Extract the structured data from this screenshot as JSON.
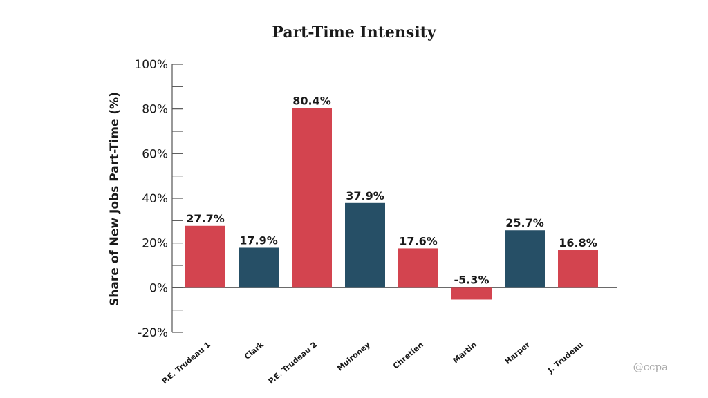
{
  "chart_data": {
    "type": "bar",
    "title": "Part-Time Intensity",
    "ylabel": "Share of New Jobs Part-Time (%)",
    "xlabel": "",
    "ylim": [
      -20,
      100
    ],
    "yticks": [
      -20,
      0,
      20,
      40,
      60,
      80,
      100
    ],
    "ytick_labels": [
      "-20%",
      "0%",
      "20%",
      "40%",
      "60%",
      "80%",
      "100%"
    ],
    "categories": [
      "P.E. Trudeau 1",
      "Clark",
      "P.E. Trudeau 2",
      "Mulroney",
      "Chretien",
      "Martin",
      "Harper",
      "J. Trudeau"
    ],
    "values": [
      27.7,
      17.9,
      80.4,
      37.9,
      17.6,
      -5.3,
      25.7,
      16.8
    ],
    "value_labels": [
      "27.7%",
      "17.9%",
      "80.4%",
      "37.9%",
      "17.6%",
      "-5.3%",
      "25.7%",
      "16.8%"
    ],
    "bar_colors": [
      "#d3444f",
      "#264f66",
      "#d3444f",
      "#264f66",
      "#d3444f",
      "#d3444f",
      "#264f66",
      "#d3444f"
    ],
    "grid": false,
    "legend": "none"
  },
  "watermark": "@ccpa"
}
